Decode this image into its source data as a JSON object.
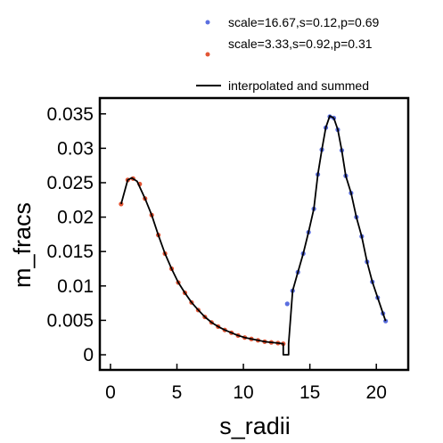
{
  "colors": {
    "blue": "#5b6fe0",
    "red": "#e25535",
    "curve": "#000000"
  },
  "chart_data": {
    "type": "scatter",
    "xlabel": "s_radii",
    "ylabel": "m_fracs",
    "xlim": [
      -0.8,
      22.4
    ],
    "ylim": [
      -0.0022,
      0.0373
    ],
    "xticks": [
      "0",
      "5",
      "10",
      "15",
      "20"
    ],
    "xtick_values": [
      0,
      5,
      10,
      15,
      20
    ],
    "yticks": [
      "0",
      "0.005",
      "0.01",
      "0.015",
      "0.02",
      "0.025",
      "0.03",
      "0.035"
    ],
    "ytick_values": [
      0,
      0.005,
      0.01,
      0.015,
      0.02,
      0.025,
      0.03,
      0.035
    ],
    "grid": false,
    "legend_position": "above plot, right",
    "series": [
      {
        "name": "scale=16.67,s=0.12,p=0.69",
        "color": "#5b6fe0",
        "kind": "scatter",
        "x": [
          13.3,
          13.7,
          14.1,
          14.5,
          14.9,
          15.3,
          15.6,
          15.9,
          16.2,
          16.5,
          16.8,
          17.1,
          17.4,
          17.7,
          18.1,
          18.5,
          18.9,
          19.3,
          19.7,
          20.1,
          20.5,
          20.7
        ],
        "y": [
          0.0074,
          0.0093,
          0.012,
          0.0147,
          0.0178,
          0.0212,
          0.0262,
          0.0298,
          0.033,
          0.0346,
          0.0344,
          0.0327,
          0.0297,
          0.026,
          0.0235,
          0.02,
          0.0172,
          0.0135,
          0.0106,
          0.0083,
          0.006,
          0.0049
        ]
      },
      {
        "name": "scale=3.33,s=0.92,p=0.31",
        "color": "#e25535",
        "kind": "scatter",
        "x": [
          0.8,
          1.3,
          1.7,
          2.2,
          2.6,
          3.1,
          3.6,
          4.1,
          4.6,
          5.1,
          5.6,
          6.1,
          6.6,
          7.1,
          7.6,
          8.1,
          8.6,
          9.1,
          9.6,
          10.1,
          10.6,
          11.1,
          11.6,
          12.1,
          12.6,
          13.0
        ],
        "y": [
          0.0219,
          0.0254,
          0.0256,
          0.0248,
          0.0227,
          0.0203,
          0.0174,
          0.0147,
          0.0125,
          0.0105,
          0.009,
          0.0076,
          0.0065,
          0.0055,
          0.0047,
          0.0041,
          0.0036,
          0.0032,
          0.0028,
          0.0025,
          0.0023,
          0.0021,
          0.0019,
          0.0018,
          0.0017,
          0.0016
        ]
      },
      {
        "name": "interpolated and summed",
        "color": "#000000",
        "kind": "line",
        "x": [
          0.8,
          1.3,
          1.6,
          2.0,
          2.6,
          3.1,
          3.6,
          4.1,
          4.6,
          5.1,
          5.6,
          6.1,
          6.6,
          7.1,
          7.6,
          8.1,
          8.6,
          9.1,
          9.6,
          10.1,
          10.6,
          11.1,
          11.6,
          12.1,
          12.6,
          13.0,
          13.0,
          13.4,
          13.4,
          13.7,
          14.1,
          14.5,
          14.9,
          15.3,
          15.6,
          15.9,
          16.2,
          16.5,
          16.8,
          17.1,
          17.4,
          17.7,
          18.1,
          18.5,
          18.9,
          19.3,
          19.7,
          20.1,
          20.5,
          20.7
        ],
        "y": [
          0.0219,
          0.0254,
          0.0257,
          0.0252,
          0.0227,
          0.0203,
          0.0174,
          0.0147,
          0.0125,
          0.0105,
          0.009,
          0.0076,
          0.0065,
          0.0055,
          0.0047,
          0.0041,
          0.0036,
          0.0032,
          0.0028,
          0.0025,
          0.0023,
          0.0021,
          0.0019,
          0.0018,
          0.0017,
          0.0016,
          0.0,
          0.0,
          0.0016,
          0.0093,
          0.012,
          0.0147,
          0.0178,
          0.0212,
          0.0262,
          0.0298,
          0.033,
          0.0347,
          0.0344,
          0.0327,
          0.0297,
          0.026,
          0.0235,
          0.02,
          0.0172,
          0.0135,
          0.0106,
          0.0083,
          0.006,
          0.0049
        ]
      }
    ]
  }
}
